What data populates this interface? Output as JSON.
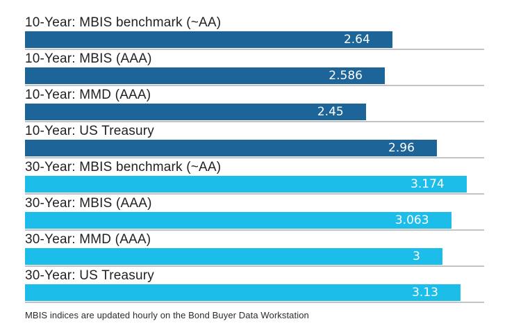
{
  "chart_data": {
    "type": "bar",
    "orientation": "horizontal",
    "title": "",
    "xlabel": "",
    "ylabel": "",
    "xlim": [
      0,
      3.3
    ],
    "legend": "none",
    "grid": "row-baselines-only",
    "colors": {
      "ten_year_bar": "#1d6499",
      "thirty_year_bar": "#1dbde9",
      "baseline": "#c3c3c3",
      "label_text": "#231f20",
      "value_text": "#ffffff"
    },
    "bars": [
      {
        "label": "10-Year: MBIS benchmark (~AA)",
        "value": 2.64,
        "display": "2.64",
        "group": "10-year"
      },
      {
        "label": "10-Year: MBIS (AAA)",
        "value": 2.586,
        "display": "2.586",
        "group": "10-year"
      },
      {
        "label": "10-Year: MMD (AAA)",
        "value": 2.45,
        "display": "2.45",
        "group": "10-year"
      },
      {
        "label": "10-Year: US Treasury",
        "value": 2.96,
        "display": "2.96",
        "group": "10-year"
      },
      {
        "label": "30-Year: MBIS benchmark (~AA)",
        "value": 3.174,
        "display": "3.174",
        "group": "30-year"
      },
      {
        "label": "30-Year: MBIS (AAA)",
        "value": 3.063,
        "display": "3.063",
        "group": "30-year"
      },
      {
        "label": "30-Year: MMD (AAA)",
        "value": 3,
        "display": "3",
        "group": "30-year"
      },
      {
        "label": "30-Year: US Treasury",
        "value": 3.13,
        "display": "3.13",
        "group": "30-year"
      }
    ],
    "footnote": "MBIS indices are updated hourly on the Bond Buyer Data Workstation"
  }
}
